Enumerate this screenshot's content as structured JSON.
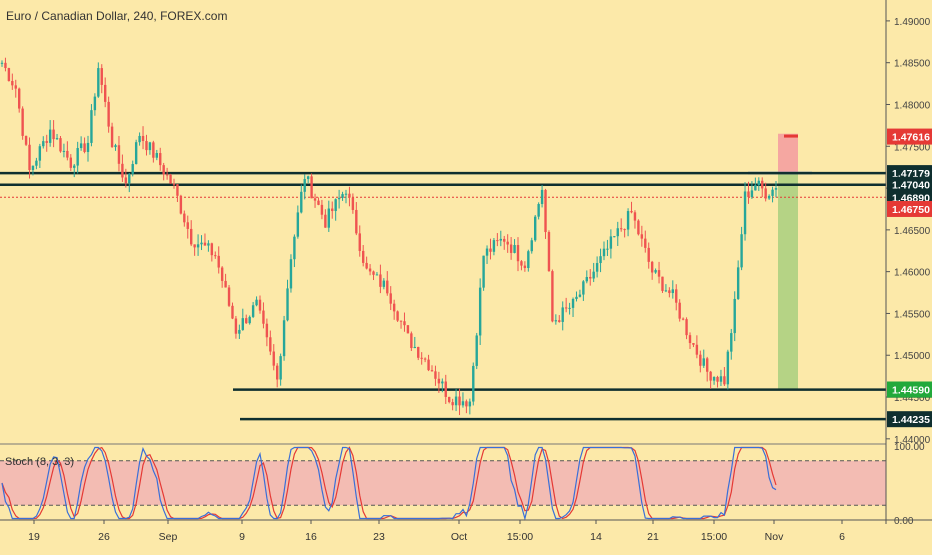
{
  "header": {
    "title": "Euro / Canadian Dollar, 240, FOREX.com"
  },
  "indicator": {
    "label": "Stoch (8, 3, 3)"
  },
  "colors": {
    "background": "#fce9a9",
    "bull": "#26a69a",
    "bear": "#ef5350",
    "level_line": "#0f2f2f",
    "current_price": "#e53935",
    "entry_line": "#6a8fd0",
    "stop_zone": "#f4a0a0",
    "target_zone": "#a8cf7f",
    "stoch_k": "#3a6fd8",
    "stoch_d": "#e53935",
    "stoch_band": "#f0a8b8",
    "badge_dark": "#0f2f2f",
    "badge_green": "#22a93b"
  },
  "chart_data": {
    "type": "candlestick",
    "title": "Euro / Canadian Dollar, 240, FOREX.com",
    "x_tick_labels": [
      "19",
      "26",
      "Sep",
      "9",
      "16",
      "23",
      "Oct",
      "15:00",
      "14",
      "21",
      "15:00",
      "Nov",
      "6"
    ],
    "y_ticks": [
      1.49,
      1.485,
      1.48,
      1.475,
      1.47,
      1.465,
      1.46,
      1.455,
      1.45,
      1.445,
      1.44
    ],
    "y_tick_labels": [
      "1.49000",
      "1.48500",
      "1.48000",
      "1.47500",
      "1.47000",
      "1.46500",
      "1.46000",
      "1.45500",
      "1.45000",
      "1.44500",
      "1.44000"
    ],
    "ylim": [
      1.4395,
      1.4925
    ],
    "path_anchors": [
      [
        0,
        1.485
      ],
      [
        4,
        1.482
      ],
      [
        8,
        1.472
      ],
      [
        14,
        1.477
      ],
      [
        20,
        1.473
      ],
      [
        25,
        1.4755
      ],
      [
        28,
        1.4845
      ],
      [
        32,
        1.4755
      ],
      [
        36,
        1.4705
      ],
      [
        40,
        1.4765
      ],
      [
        45,
        1.4735
      ],
      [
        50,
        1.47
      ],
      [
        55,
        1.464
      ],
      [
        62,
        1.462
      ],
      [
        68,
        1.453
      ],
      [
        74,
        1.456
      ],
      [
        80,
        1.447
      ],
      [
        84,
        1.462
      ],
      [
        88,
        1.4715
      ],
      [
        94,
        1.466
      ],
      [
        100,
        1.47
      ],
      [
        106,
        1.46
      ],
      [
        112,
        1.458
      ],
      [
        118,
        1.452
      ],
      [
        124,
        1.449
      ],
      [
        130,
        1.445
      ],
      [
        136,
        1.4445
      ],
      [
        140,
        1.462
      ],
      [
        146,
        1.464
      ],
      [
        152,
        1.461
      ],
      [
        157,
        1.47
      ],
      [
        160,
        1.454
      ],
      [
        166,
        1.456
      ],
      [
        172,
        1.46
      ],
      [
        178,
        1.464
      ],
      [
        183,
        1.467
      ],
      [
        189,
        1.46
      ],
      [
        195,
        1.457
      ],
      [
        200,
        1.452
      ],
      [
        205,
        1.448
      ],
      [
        210,
        1.447
      ],
      [
        213,
        1.456
      ],
      [
        216,
        1.469
      ],
      [
        219,
        1.4705
      ],
      [
        222,
        1.4695
      ],
      [
        225,
        1.47
      ]
    ],
    "levels": [
      {
        "price": 1.47179,
        "label": "1.47179",
        "style": "solid-dark"
      },
      {
        "price": 1.4704,
        "label": "1.47040",
        "style": "solid-dark"
      },
      {
        "price": 1.44588,
        "label": "1.44588",
        "style": "solid-dark"
      },
      {
        "price": 1.44235,
        "label": "1.44235",
        "style": "solid-dark"
      }
    ],
    "badges": [
      {
        "price": 1.47616,
        "label": "1.47616",
        "color": "#e53935"
      },
      {
        "price": 1.47179,
        "label": "1.47179",
        "color": "#0f2f2f"
      },
      {
        "price": 1.4704,
        "label": "1.47040",
        "color": "#0f2f2f"
      },
      {
        "price": 1.4689,
        "label": "1.46890",
        "color": "#0f2f2f"
      },
      {
        "price": 1.4675,
        "label": "1.46750",
        "color": "#e53935"
      },
      {
        "price": 1.44588,
        "label": "1.44588",
        "color": "#0f2f2f"
      },
      {
        "price": 1.4459,
        "label": "1.44590",
        "color": "#22a93b"
      },
      {
        "price": 1.44235,
        "label": "1.44235",
        "color": "#0f2f2f"
      }
    ],
    "current_price": 1.4689,
    "position": {
      "entry": 1.4718,
      "stop": 1.4765,
      "target": 1.4459
    },
    "stochastic": {
      "params": [
        8,
        3,
        3
      ],
      "upper": 80,
      "lower": 20,
      "y_tick_labels": [
        "100.00",
        "0.00"
      ],
      "ylim": [
        0,
        100
      ]
    }
  }
}
